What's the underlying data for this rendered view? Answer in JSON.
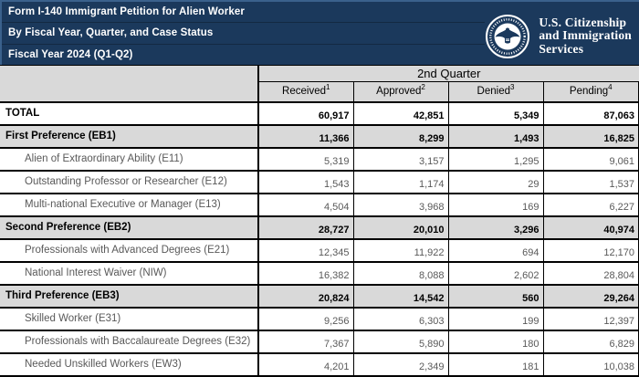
{
  "header": {
    "title_lines": [
      "Form I-140 Immigrant Petition for Alien Worker",
      "By Fiscal Year, Quarter, and Case Status",
      "Fiscal Year 2024 (Q1-Q2)"
    ],
    "logo": {
      "line1": "U.S. Citizenship",
      "line2": "and Immigration",
      "line3": "Services",
      "seal_icon": "dhs-seal-icon"
    }
  },
  "table": {
    "quarter_header": "2nd Quarter",
    "columns": [
      {
        "label": "Received",
        "superscript": "1"
      },
      {
        "label": "Approved",
        "superscript": "2"
      },
      {
        "label": "Denied",
        "superscript": "3"
      },
      {
        "label": "Pending",
        "superscript": "4"
      }
    ],
    "rows": [
      {
        "label": "TOTAL",
        "type": "total",
        "values": [
          "60,917",
          "42,851",
          "5,349",
          "87,063"
        ]
      },
      {
        "label": "First Preference (EB1)",
        "type": "section",
        "values": [
          "11,366",
          "8,299",
          "1,493",
          "16,825"
        ]
      },
      {
        "label": "Alien of Extraordinary Ability (E11)",
        "type": "sub",
        "values": [
          "5,319",
          "3,157",
          "1,295",
          "9,061"
        ]
      },
      {
        "label": "Outstanding Professor or Researcher (E12)",
        "type": "sub",
        "values": [
          "1,543",
          "1,174",
          "29",
          "1,537"
        ]
      },
      {
        "label": "Multi-national Executive or Manager (E13)",
        "type": "sub",
        "values": [
          "4,504",
          "3,968",
          "169",
          "6,227"
        ]
      },
      {
        "label": "Second Preference (EB2)",
        "type": "section",
        "values": [
          "28,727",
          "20,010",
          "3,296",
          "40,974"
        ]
      },
      {
        "label": "Professionals with Advanced Degrees (E21)",
        "type": "sub",
        "values": [
          "12,345",
          "11,922",
          "694",
          "12,170"
        ]
      },
      {
        "label": "National Interest Waiver (NIW)",
        "type": "sub",
        "values": [
          "16,382",
          "8,088",
          "2,602",
          "28,804"
        ]
      },
      {
        "label": "Third Preference (EB3)",
        "type": "section",
        "values": [
          "20,824",
          "14,542",
          "560",
          "29,264"
        ]
      },
      {
        "label": "Skilled Worker (E31)",
        "type": "sub",
        "values": [
          "9,256",
          "6,303",
          "199",
          "12,397"
        ]
      },
      {
        "label": "Professionals with Baccalaureate Degrees (E32)",
        "type": "sub",
        "values": [
          "7,367",
          "5,890",
          "180",
          "6,829"
        ]
      },
      {
        "label": "Needed Unskilled Workers (EW3)",
        "type": "sub",
        "values": [
          "4,201",
          "2,349",
          "181",
          "10,038"
        ]
      }
    ]
  },
  "colors": {
    "navy": "#1b395c",
    "header_grey": "#d9d9d9",
    "sub_row_text": "#595959",
    "border_black": "#000000",
    "banner_text": "#ffffff"
  }
}
